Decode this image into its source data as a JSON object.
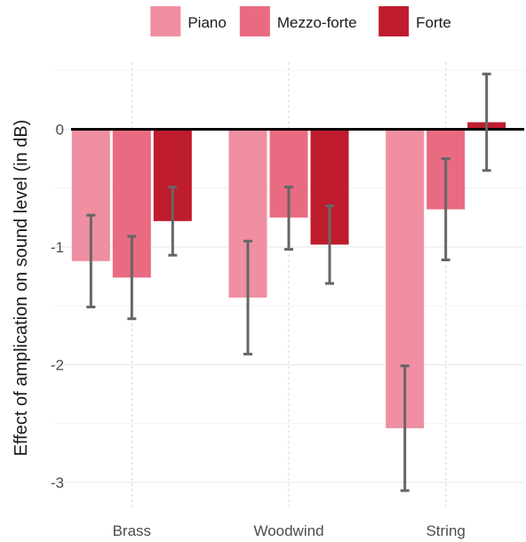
{
  "chart_data": {
    "type": "bar",
    "title": "",
    "xlabel": "",
    "ylabel": "Effect of amplication on sound level (in dB)",
    "categories": [
      "Brass",
      "Woodwind",
      "String"
    ],
    "series": [
      {
        "name": "Piano",
        "color": "#ef8fa1",
        "values": [
          -1.12,
          -1.43,
          -2.54
        ],
        "error_low": [
          -1.51,
          -1.91,
          -3.07
        ],
        "error_high": [
          -0.73,
          -0.95,
          -2.01
        ]
      },
      {
        "name": "Mezzo-forte",
        "color": "#e96b82",
        "values": [
          -1.26,
          -0.75,
          -0.68
        ],
        "error_low": [
          -1.61,
          -1.02,
          -1.11
        ],
        "error_high": [
          -0.91,
          -0.49,
          -0.25
        ]
      },
      {
        "name": "Forte",
        "color": "#bf1c2e",
        "values": [
          -0.78,
          -0.98,
          0.06
        ],
        "error_low": [
          -1.07,
          -1.31,
          -0.35
        ],
        "error_high": [
          -0.49,
          -0.65,
          0.47
        ]
      }
    ],
    "y_ticks": [
      0,
      -1,
      -2,
      -3
    ],
    "y_tick_labels": [
      "0",
      "-1",
      "-2",
      "-3"
    ],
    "ylim": [
      -3.22,
      0.57
    ],
    "grid": true,
    "zero_line": true,
    "error_bar_color": "#666666",
    "legend_position": "top"
  }
}
